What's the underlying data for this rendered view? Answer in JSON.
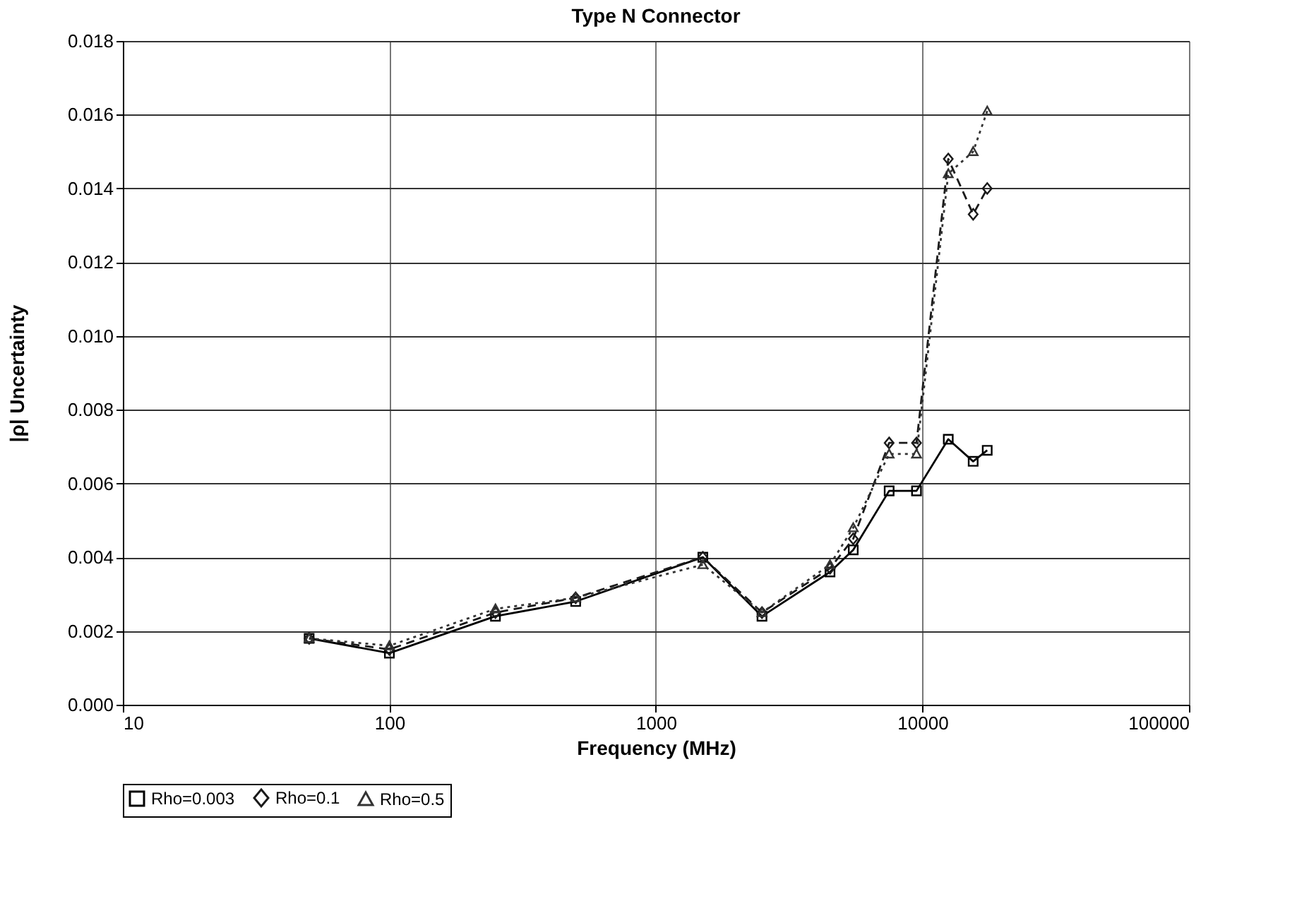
{
  "chart_data": {
    "type": "line",
    "title": "Type N Connector",
    "xlabel": "Frequency (MHz)",
    "ylabel": "|ρ| Uncertainty",
    "x": [
      50,
      100,
      250,
      500,
      1500,
      2500,
      4500,
      5500,
      7500,
      9500,
      12500,
      15500,
      17500
    ],
    "series": [
      {
        "name": "Rho=0.003",
        "color": "#000000",
        "marker": "square",
        "line_style": "solid",
        "values": [
          0.0018,
          0.0014,
          0.0024,
          0.0028,
          0.004,
          0.0024,
          0.0036,
          0.0042,
          0.0058,
          0.0058,
          0.0072,
          0.0066,
          0.0069
        ]
      },
      {
        "name": "Rho=0.1",
        "color": "#1a1a1a",
        "marker": "diamond",
        "line_style": "dashed",
        "values": [
          0.0018,
          0.0015,
          0.0025,
          0.0029,
          0.004,
          0.0025,
          0.0037,
          0.0045,
          0.0071,
          0.0071,
          0.0148,
          0.0133,
          0.014
        ]
      },
      {
        "name": "Rho=0.5",
        "color": "#333333",
        "marker": "triangle",
        "line_style": "dotted",
        "values": [
          0.0018,
          0.0016,
          0.0026,
          0.0029,
          0.0038,
          0.0025,
          0.0038,
          0.0048,
          0.0068,
          0.0068,
          0.0144,
          0.015,
          0.0161
        ]
      }
    ],
    "log": "x",
    "xlim": [
      10,
      100000
    ],
    "xticks": [
      10,
      100,
      1000,
      10000,
      100000
    ],
    "ylim": [
      0,
      0.018
    ],
    "yticks": [
      {
        "value": 0,
        "label": "0.000"
      },
      {
        "value": 0.002,
        "label": "0.002"
      },
      {
        "value": 0.004,
        "label": "0.004"
      },
      {
        "value": 0.006,
        "label": "0.006"
      },
      {
        "value": 0.008,
        "label": "0.008"
      },
      {
        "value": 0.01,
        "label": "0.010"
      },
      {
        "value": 0.012,
        "label": "0.012"
      },
      {
        "value": 0.014,
        "label": "0.014"
      },
      {
        "value": 0.016,
        "label": "0.016"
      },
      {
        "value": 0.018,
        "label": "0.018"
      }
    ],
    "grid": true,
    "legend": "bottom"
  }
}
